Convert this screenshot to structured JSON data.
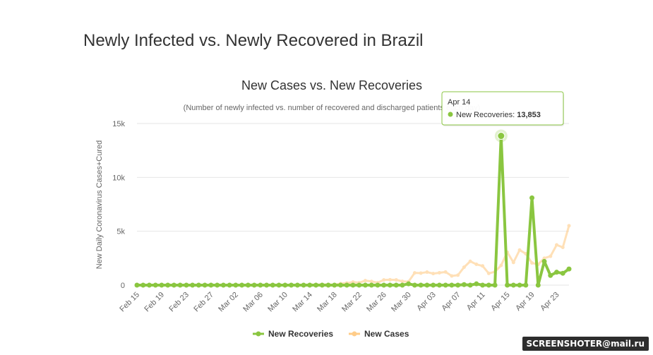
{
  "page": {
    "title": "Newly Infected vs. Newly Recovered in Brazil",
    "watermark": "SCREENSHOTER@mail.ru"
  },
  "tooltip": {
    "date": "Apr 14",
    "label": "New Recoveries: ",
    "value": "13,853"
  },
  "colors": {
    "recoveries": "#8ac640",
    "cases": "#ffcc88",
    "grid": "#e6e6e6",
    "tooltip_border": "#8ac640"
  },
  "chart_data": {
    "type": "line",
    "title": "New Cases vs. New Recoveries",
    "subtitle": "(Number of newly infected vs. number of recovered and discharged patients each day)",
    "xlabel": "",
    "ylabel": "New Daily Coronavirus Cases+Cured",
    "ylim": [
      0,
      15000
    ],
    "y_ticks": [
      0,
      5000,
      10000,
      15000
    ],
    "y_tick_labels": [
      "0",
      "5k",
      "10k",
      "15k"
    ],
    "grid": true,
    "legend_position": "bottom-center",
    "x": [
      "Feb 15",
      "Feb 16",
      "Feb 17",
      "Feb 18",
      "Feb 19",
      "Feb 20",
      "Feb 21",
      "Feb 22",
      "Feb 23",
      "Feb 24",
      "Feb 25",
      "Feb 26",
      "Feb 27",
      "Feb 28",
      "Feb 29",
      "Mar 01",
      "Mar 02",
      "Mar 03",
      "Mar 04",
      "Mar 05",
      "Mar 06",
      "Mar 07",
      "Mar 08",
      "Mar 09",
      "Mar 10",
      "Mar 11",
      "Mar 12",
      "Mar 13",
      "Mar 14",
      "Mar 15",
      "Mar 16",
      "Mar 17",
      "Mar 18",
      "Mar 19",
      "Mar 20",
      "Mar 21",
      "Mar 22",
      "Mar 23",
      "Mar 24",
      "Mar 25",
      "Mar 26",
      "Mar 27",
      "Mar 28",
      "Mar 29",
      "Mar 30",
      "Mar 31",
      "Apr 01",
      "Apr 02",
      "Apr 03",
      "Apr 04",
      "Apr 05",
      "Apr 06",
      "Apr 07",
      "Apr 08",
      "Apr 09",
      "Apr 10",
      "Apr 11",
      "Apr 12",
      "Apr 13",
      "Apr 14",
      "Apr 15",
      "Apr 16",
      "Apr 17",
      "Apr 18",
      "Apr 19",
      "Apr 20",
      "Apr 21",
      "Apr 22",
      "Apr 23",
      "Apr 24",
      "Apr 25"
    ],
    "x_tick_labels": [
      "Feb 15",
      "Feb 19",
      "Feb 23",
      "Feb 27",
      "Mar 02",
      "Mar 06",
      "Mar 10",
      "Mar 14",
      "Mar 18",
      "Mar 22",
      "Mar 26",
      "Mar 30",
      "Apr 03",
      "Apr 07",
      "Apr 11",
      "Apr 15",
      "Apr 19",
      "Apr 23"
    ],
    "series": [
      {
        "name": "New Recoveries",
        "values": [
          0,
          0,
          0,
          0,
          0,
          0,
          0,
          0,
          0,
          0,
          0,
          0,
          0,
          0,
          0,
          0,
          0,
          0,
          0,
          0,
          0,
          0,
          0,
          0,
          0,
          0,
          0,
          0,
          0,
          0,
          0,
          0,
          0,
          0,
          0,
          0,
          0,
          0,
          0,
          0,
          0,
          0,
          0,
          0,
          120,
          0,
          0,
          0,
          0,
          0,
          0,
          0,
          0,
          50,
          0,
          120,
          0,
          0,
          0,
          13853,
          0,
          0,
          0,
          0,
          8100,
          0,
          2200,
          900,
          1200,
          1100,
          1500
        ]
      },
      {
        "name": "New Cases",
        "values": [
          0,
          0,
          0,
          0,
          0,
          0,
          0,
          0,
          0,
          0,
          0,
          0,
          1,
          0,
          1,
          0,
          1,
          0,
          1,
          3,
          5,
          6,
          5,
          8,
          9,
          0,
          27,
          23,
          61,
          41,
          66,
          57,
          34,
          137,
          193,
          283,
          224,
          418,
          345,
          232,
          482,
          502,
          487,
          352,
          323,
          1138,
          1117,
          1208,
          1074,
          1146,
          1222,
          852,
          926,
          1661,
          2210,
          1930,
          1781,
          1089,
          1238,
          1832,
          3058,
          2105,
          3257,
          2917,
          2055,
          1927,
          2498,
          2678,
          3735,
          3503,
          5514
        ]
      }
    ]
  }
}
